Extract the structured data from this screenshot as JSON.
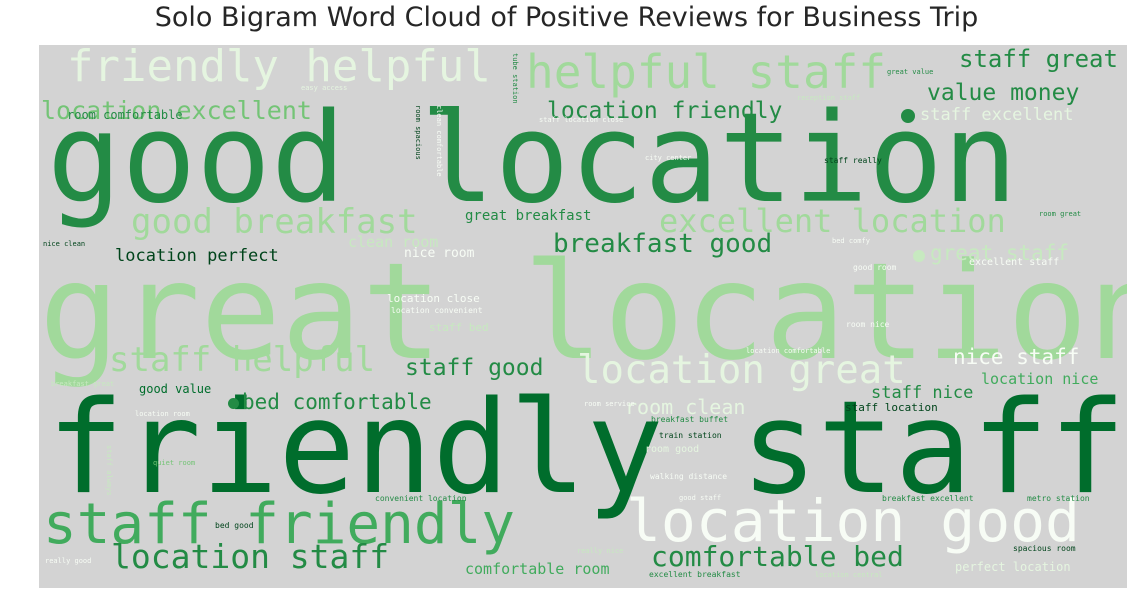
{
  "chart_data": {
    "type": "wordcloud",
    "title": "Solo Bigram Word Cloud of Positive Reviews for Business Trip",
    "background": "#d3d3d3",
    "colormap": "Greens",
    "words": [
      {
        "text": "friendly staff",
        "color": "#006d2c"
      },
      {
        "text": "great location",
        "color": "#a1d99b"
      },
      {
        "text": "good location",
        "color": "#238b45"
      },
      {
        "text": "location good",
        "color": "#f7fcf5"
      },
      {
        "text": "staff friendly",
        "color": "#41ab5d"
      },
      {
        "text": "friendly helpful",
        "color": "#e5f5e0"
      },
      {
        "text": "helpful staff",
        "color": "#a1d99b"
      },
      {
        "text": "location great",
        "color": "#e5f5e0"
      },
      {
        "text": "excellent location",
        "color": "#a1d99b"
      },
      {
        "text": "good breakfast",
        "color": "#a1d99b"
      },
      {
        "text": "location staff",
        "color": "#238b45"
      },
      {
        "text": "comfortable bed",
        "color": "#238b45"
      },
      {
        "text": "staff helpful",
        "color": "#a1d99b"
      },
      {
        "text": "location excellent",
        "color": "#74c476"
      },
      {
        "text": "breakfast good",
        "color": "#238b45"
      },
      {
        "text": "bed comfortable",
        "color": "#238b45"
      },
      {
        "text": "location friendly",
        "color": "#238b45"
      },
      {
        "text": "staff great",
        "color": "#238b45"
      },
      {
        "text": "value money",
        "color": "#238b45"
      },
      {
        "text": "staff good",
        "color": "#238b45"
      },
      {
        "text": "room clean",
        "color": "#e5f5e0"
      },
      {
        "text": "nice staff",
        "color": "#f7fcf5"
      },
      {
        "text": "great staff",
        "color": "#c7e9c0"
      },
      {
        "text": "staff excellent",
        "color": "#e5f5e0"
      },
      {
        "text": "location perfect",
        "color": "#00441b"
      },
      {
        "text": "staff nice",
        "color": "#238b45"
      },
      {
        "text": "location nice",
        "color": "#41ab5d"
      },
      {
        "text": "great breakfast",
        "color": "#238b45"
      },
      {
        "text": "clean room",
        "color": "#c7e9c0"
      },
      {
        "text": "comfortable room",
        "color": "#41ab5d"
      },
      {
        "text": "nice room",
        "color": "#f7fcf5"
      },
      {
        "text": "good value",
        "color": "#006d2c"
      },
      {
        "text": "room comfortable",
        "color": "#238b45"
      },
      {
        "text": "perfect location",
        "color": "#e5f5e0"
      },
      {
        "text": "staff location",
        "color": "#00441b"
      },
      {
        "text": "excellent staff",
        "color": "#f7fcf5"
      },
      {
        "text": "location close",
        "color": "#f7fcf5"
      },
      {
        "text": "room good",
        "color": "#e5f5e0"
      },
      {
        "text": "staff bed",
        "color": "#c7e9c0"
      },
      {
        "text": "location convenient",
        "color": "#f7fcf5"
      },
      {
        "text": "spacious room",
        "color": "#00441b"
      },
      {
        "text": "metro station",
        "color": "#238b45"
      },
      {
        "text": "breakfast excellent",
        "color": "#238b45"
      },
      {
        "text": "excellent breakfast",
        "color": "#238b45"
      },
      {
        "text": "convenient location",
        "color": "#238b45"
      },
      {
        "text": "train station",
        "color": "#00441b"
      },
      {
        "text": "walking distance",
        "color": "#f7fcf5"
      },
      {
        "text": "breakfast buffet",
        "color": "#238b45"
      },
      {
        "text": "room service",
        "color": "#f7fcf5"
      },
      {
        "text": "location comfortable",
        "color": "#f7fcf5"
      },
      {
        "text": "room nice",
        "color": "#f7fcf5"
      },
      {
        "text": "good room",
        "color": "#f7fcf5"
      },
      {
        "text": "room great",
        "color": "#238b45"
      },
      {
        "text": "bed comfy",
        "color": "#f7fcf5"
      },
      {
        "text": "staff really",
        "color": "#00441b"
      },
      {
        "text": "city center",
        "color": "#f7fcf5"
      },
      {
        "text": "reception staff",
        "color": "#c7e9c0"
      },
      {
        "text": "great value",
        "color": "#238b45"
      },
      {
        "text": "tube station",
        "color": "#238b45"
      },
      {
        "text": "room spacious",
        "color": "#00441b"
      },
      {
        "text": "easy access",
        "color": "#e5f5e0"
      },
      {
        "text": "nice clean",
        "color": "#00441b"
      },
      {
        "text": "clean comfortable",
        "color": "#f7fcf5"
      },
      {
        "text": "quiet room",
        "color": "#74c476"
      },
      {
        "text": "bed good",
        "color": "#00441b"
      },
      {
        "text": "really good",
        "color": "#f7fcf5"
      },
      {
        "text": "breakfast great",
        "color": "#c7e9c0"
      },
      {
        "text": "location room",
        "color": "#f7fcf5"
      },
      {
        "text": "good staff",
        "color": "#f7fcf5"
      },
      {
        "text": "really nice",
        "color": "#c7e9c0"
      },
      {
        "text": "location central",
        "color": "#c7e9c0"
      },
      {
        "text": "staff always",
        "color": "#c7e9c0"
      },
      {
        "text": "staff location close",
        "color": "#f7fcf5"
      }
    ]
  }
}
